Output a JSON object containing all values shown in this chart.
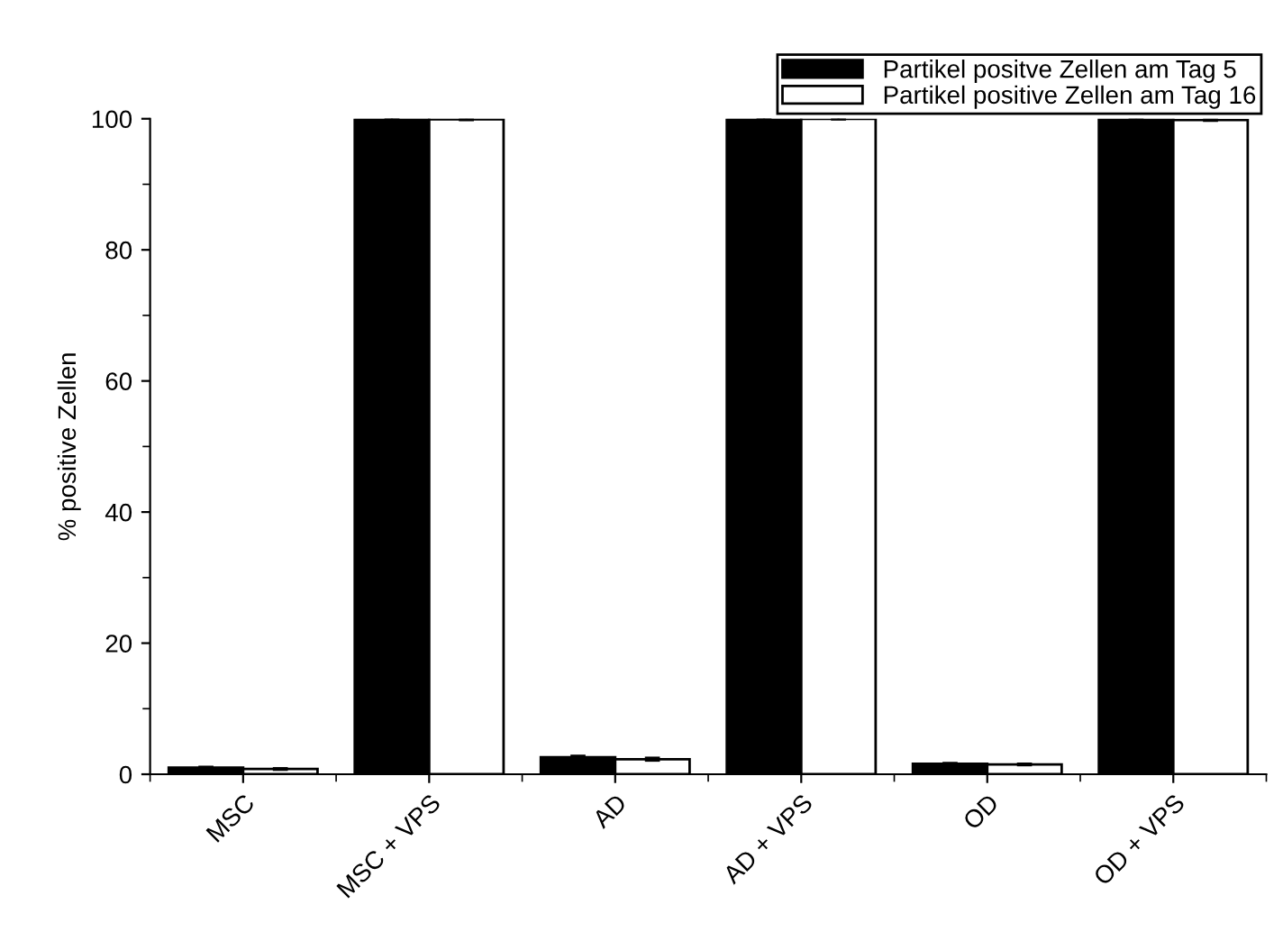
{
  "chart_data": {
    "type": "bar",
    "ylabel": "% positive Zellen",
    "categories": [
      "MSC",
      "MSC + VPS",
      "AD",
      "AD + VPS",
      "OD",
      "OD + VPS"
    ],
    "series": [
      {
        "name": "Partikel positve Zellen am Tag 5",
        "color": "#000000",
        "values": [
          1.0,
          100,
          2.6,
          100,
          1.6,
          99.9
        ],
        "errors": [
          0.1,
          0.1,
          0.2,
          0.1,
          0.1,
          0.1
        ]
      },
      {
        "name": "Partikel positive Zellen am Tag 16",
        "color": "#ffffff",
        "values": [
          0.8,
          99.9,
          2.3,
          100,
          1.5,
          99.8
        ],
        "errors": [
          0.1,
          0.1,
          0.2,
          0.1,
          0.1,
          0.1
        ]
      }
    ],
    "ylim": [
      0,
      100
    ],
    "yticks": [
      0,
      20,
      40,
      60,
      80,
      100
    ],
    "grid": false,
    "legend": "top right"
  }
}
